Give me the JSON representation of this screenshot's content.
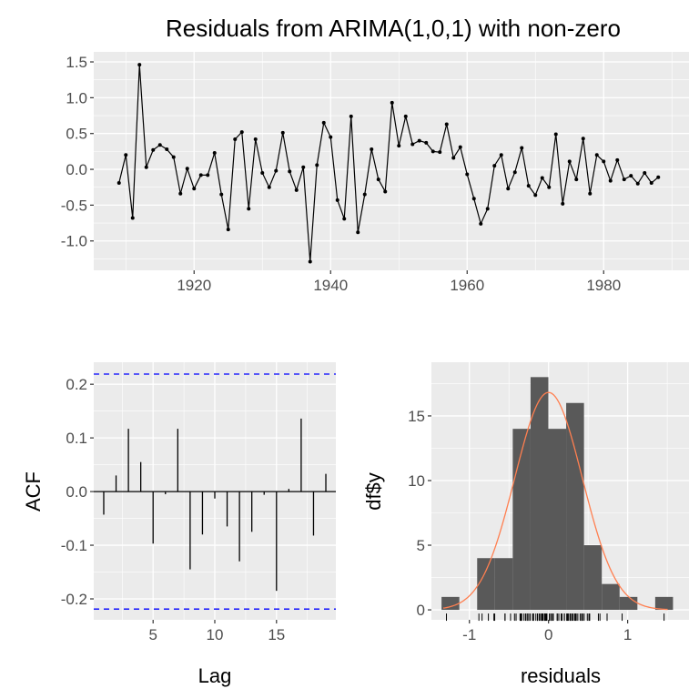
{
  "chart_data": [
    {
      "type": "line",
      "title": "Residuals from ARIMA(1,0,1) with non-zero",
      "xlabel": "",
      "ylabel": "",
      "x_start": 1909,
      "xlim": [
        1905.3,
        1992.5
      ],
      "ylim": [
        -1.41,
        1.64
      ],
      "xticks": [
        1920,
        1940,
        1960,
        1980
      ],
      "yticks": [
        -1.0,
        -0.5,
        0.0,
        0.5,
        1.0,
        1.5
      ],
      "ytick_labels": [
        "-1.0",
        "-0.5",
        "0.0",
        "0.5",
        "1.0",
        "1.5"
      ],
      "grid": true,
      "values": [
        -0.19,
        0.2,
        -0.68,
        1.46,
        0.03,
        0.27,
        0.34,
        0.28,
        0.17,
        -0.34,
        0.01,
        -0.27,
        -0.08,
        -0.08,
        0.23,
        -0.35,
        -0.84,
        0.42,
        0.52,
        -0.55,
        0.42,
        -0.05,
        -0.25,
        -0.02,
        0.51,
        -0.03,
        -0.29,
        0.03,
        -1.29,
        0.06,
        0.65,
        0.45,
        -0.43,
        -0.69,
        0.74,
        -0.88,
        -0.35,
        0.28,
        -0.14,
        -0.31,
        0.93,
        0.33,
        0.74,
        0.35,
        0.4,
        0.37,
        0.25,
        0.24,
        0.63,
        0.16,
        0.31,
        -0.07,
        -0.41,
        -0.76,
        -0.55,
        0.05,
        0.2,
        -0.27,
        -0.04,
        0.3,
        -0.23,
        -0.36,
        -0.12,
        -0.25,
        0.49,
        -0.48,
        0.11,
        -0.14,
        0.43,
        -0.34,
        0.2,
        0.11,
        -0.16,
        0.13,
        -0.14,
        -0.09,
        -0.2,
        -0.05,
        -0.19,
        -0.11
      ]
    },
    {
      "type": "bar",
      "title": "",
      "xlabel": "Lag",
      "ylabel": "ACF",
      "lags": [
        1,
        2,
        3,
        4,
        5,
        6,
        7,
        8,
        9,
        10,
        11,
        12,
        13,
        14,
        15,
        16,
        17,
        18,
        19
      ],
      "values": [
        -0.043,
        0.03,
        0.117,
        0.055,
        -0.097,
        -0.005,
        0.117,
        -0.145,
        -0.08,
        -0.013,
        -0.065,
        -0.13,
        -0.075,
        -0.006,
        -0.185,
        0.005,
        0.136,
        -0.082,
        0.033
      ],
      "conf_limit": 0.219,
      "conf_color": "#0000ff",
      "xlim": [
        0.19,
        19.81
      ],
      "ylim": [
        -0.239,
        0.241
      ],
      "xticks": [
        5,
        10,
        15
      ],
      "yticks": [
        -0.2,
        -0.1,
        0.0,
        0.1,
        0.2
      ],
      "ytick_labels": [
        "-0.2",
        "-0.1",
        "0.0",
        "0.1",
        "0.2"
      ],
      "grid": true
    },
    {
      "type": "histogram",
      "title": "",
      "xlabel": "residuals",
      "ylabel": "df$y",
      "bin_start": -1.352,
      "bin_width": 0.225,
      "counts": [
        1,
        0,
        4,
        4,
        14,
        18,
        14,
        16,
        5,
        2,
        1,
        0,
        1
      ],
      "bar_color": "#595959",
      "density_curve": {
        "mean": 0.0,
        "sd": 0.427,
        "color": "#ff7f50"
      },
      "rug": true,
      "xlim": [
        -1.48,
        1.775
      ],
      "ylim": [
        -0.77,
        19.15
      ],
      "xticks": [
        -1,
        0,
        1
      ],
      "yticks": [
        0,
        5,
        10,
        15
      ],
      "grid": true
    }
  ]
}
